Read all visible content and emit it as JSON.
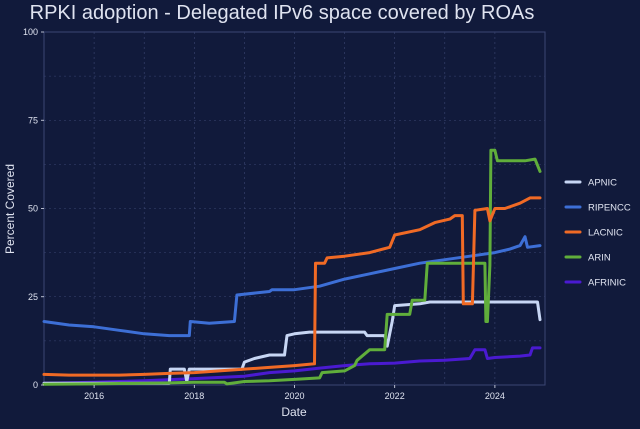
{
  "chart_data": {
    "type": "line",
    "title": "RPKI adoption - Delegated IPv6 space covered by ROAs",
    "xlabel": "Date",
    "ylabel": "Percent Covered",
    "xlim": [
      2015.0,
      2025.0
    ],
    "ylim": [
      0,
      100
    ],
    "x_ticks": [
      2016,
      2018,
      2020,
      2022,
      2024
    ],
    "y_ticks": [
      0,
      25,
      50,
      75,
      100
    ],
    "grid": true,
    "legend_position": "right",
    "background": "#111a3b",
    "panel_color": "#111a3b",
    "grid_color": "#3b4673",
    "text_color": "#dfe3f0",
    "series": [
      {
        "name": "APNIC",
        "color": "#c7d6f4",
        "x": [
          2015.0,
          2016.0,
          2017.0,
          2017.5,
          2017.52,
          2017.8,
          2017.85,
          2017.9,
          2018.5,
          2018.95,
          2019.0,
          2019.2,
          2019.5,
          2019.8,
          2019.85,
          2020.0,
          2020.3,
          2020.6,
          2021.0,
          2021.4,
          2021.45,
          2021.8,
          2021.85,
          2021.95,
          2022.0,
          2022.5,
          2022.7,
          2023.0,
          2023.5,
          2024.0,
          2024.5,
          2024.85,
          2024.9
        ],
        "y": [
          0.5,
          0.5,
          0.5,
          0.5,
          4.5,
          4.5,
          1.0,
          4.5,
          4.5,
          4.5,
          6.5,
          7.5,
          8.5,
          8.5,
          14.0,
          14.5,
          15.0,
          15.0,
          15.0,
          15.0,
          14.0,
          14.0,
          11.0,
          18.0,
          22.5,
          23.0,
          23.5,
          23.5,
          23.5,
          23.5,
          23.5,
          23.5,
          18.5
        ]
      },
      {
        "name": "RIPENCC",
        "color": "#3d6fd6",
        "x": [
          2015.0,
          2015.5,
          2016.0,
          2016.5,
          2017.0,
          2017.5,
          2017.9,
          2017.92,
          2018.3,
          2018.8,
          2018.85,
          2019.5,
          2019.55,
          2020.0,
          2020.5,
          2021.0,
          2021.5,
          2022.0,
          2022.5,
          2023.0,
          2023.5,
          2024.0,
          2024.3,
          2024.5,
          2024.6,
          2024.65,
          2024.9
        ],
        "y": [
          18.0,
          17.0,
          16.5,
          15.5,
          14.5,
          14.0,
          14.0,
          18.0,
          17.5,
          18.0,
          25.5,
          26.5,
          27.0,
          27.0,
          28.0,
          30.0,
          31.5,
          33.0,
          34.5,
          35.5,
          36.5,
          37.5,
          38.5,
          39.5,
          42.0,
          39.0,
          39.5
        ]
      },
      {
        "name": "LACNIC",
        "color": "#f06a25",
        "x": [
          2015.0,
          2015.5,
          2016.0,
          2016.5,
          2017.0,
          2017.5,
          2018.0,
          2018.5,
          2019.0,
          2019.5,
          2020.0,
          2020.4,
          2020.42,
          2020.6,
          2020.65,
          2021.0,
          2021.5,
          2021.9,
          2022.0,
          2022.5,
          2022.8,
          2023.1,
          2023.2,
          2023.35,
          2023.37,
          2023.55,
          2023.6,
          2023.85,
          2023.9,
          2024.0,
          2024.2,
          2024.5,
          2024.7,
          2024.9
        ],
        "y": [
          3.0,
          2.8,
          2.8,
          2.8,
          3.0,
          3.3,
          3.5,
          4.0,
          4.5,
          5.0,
          5.5,
          6.0,
          34.5,
          34.5,
          36.0,
          36.5,
          37.5,
          39.0,
          42.5,
          44.0,
          46.0,
          47.0,
          48.0,
          48.0,
          23.0,
          23.0,
          49.5,
          50.0,
          46.5,
          50.0,
          50.0,
          51.5,
          53.0,
          53.0
        ]
      },
      {
        "name": "ARIN",
        "color": "#60ae3b",
        "x": [
          2015.0,
          2016.0,
          2017.0,
          2017.5,
          2018.0,
          2018.6,
          2018.65,
          2019.0,
          2019.5,
          2020.0,
          2020.5,
          2020.55,
          2021.0,
          2021.2,
          2021.25,
          2021.5,
          2021.8,
          2021.85,
          2022.3,
          2022.35,
          2022.6,
          2022.65,
          2023.5,
          2023.8,
          2023.82,
          2023.85,
          2023.9,
          2023.92,
          2024.0,
          2024.05,
          2024.4,
          2024.6,
          2024.8,
          2024.9
        ],
        "y": [
          0.2,
          0.3,
          0.5,
          0.6,
          0.8,
          0.8,
          0.3,
          1.0,
          1.2,
          1.6,
          2.0,
          3.5,
          4.0,
          5.5,
          7.0,
          10.0,
          10.0,
          20.0,
          20.0,
          24.0,
          24.0,
          34.5,
          34.5,
          34.5,
          18.0,
          18.0,
          34.0,
          66.5,
          66.5,
          63.5,
          63.5,
          63.5,
          64.0,
          60.5
        ]
      },
      {
        "name": "AFRINIC",
        "color": "#4a1ad1",
        "x": [
          2015.0,
          2016.0,
          2017.0,
          2018.0,
          2019.0,
          2019.5,
          2020.0,
          2020.5,
          2021.0,
          2021.5,
          2022.0,
          2022.5,
          2023.0,
          2023.5,
          2023.6,
          2023.8,
          2023.85,
          2024.0,
          2024.5,
          2024.7,
          2024.75,
          2024.9
        ],
        "y": [
          0.5,
          0.8,
          1.2,
          1.8,
          2.5,
          3.5,
          4.0,
          4.8,
          5.5,
          6.0,
          6.2,
          6.8,
          7.0,
          7.5,
          10.0,
          10.0,
          7.5,
          7.8,
          8.2,
          8.5,
          10.5,
          10.5
        ]
      }
    ]
  }
}
